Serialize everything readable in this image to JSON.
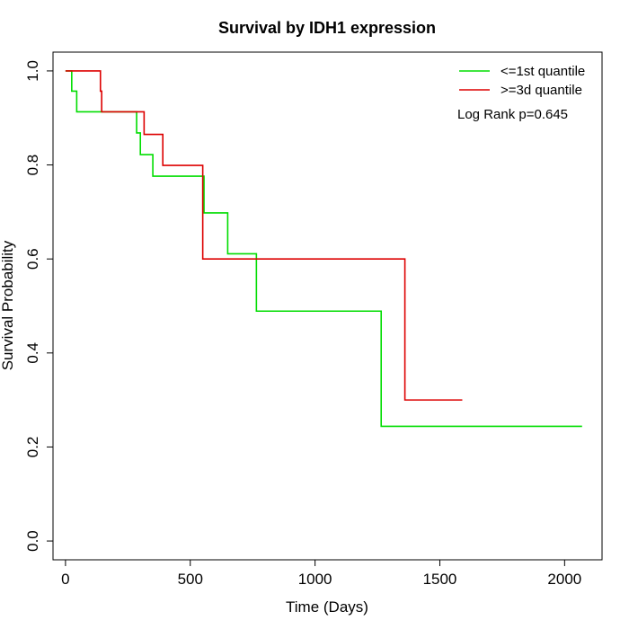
{
  "chart_data": {
    "type": "line",
    "title": "Survival by IDH1 expression",
    "xlabel": "Time (Days)",
    "ylabel": "Survival Probability",
    "xlim": [
      -50,
      2150
    ],
    "ylim": [
      -0.04,
      1.04
    ],
    "xticks": [
      0,
      500,
      1000,
      1500,
      2000
    ],
    "yticks": [
      0.0,
      0.2,
      0.4,
      0.6,
      0.8,
      1.0
    ],
    "xtick_labels": [
      "0",
      "500",
      "1000",
      "1500",
      "2000"
    ],
    "ytick_labels": [
      "0.0",
      "0.2",
      "0.4",
      "0.6",
      "0.8",
      "1.0"
    ],
    "grid": false,
    "legend_position": "top-right",
    "annotation": "Log Rank p=0.645",
    "series": [
      {
        "name": "<=1st quantile",
        "color": "#00dd00",
        "step_x": [
          0,
          25,
          45,
          285,
          300,
          350,
          555,
          650,
          765,
          1265,
          2070
        ],
        "step_y": [
          1.0,
          0.957,
          0.913,
          0.868,
          0.822,
          0.776,
          0.698,
          0.611,
          0.489,
          0.244,
          0.244
        ]
      },
      {
        "name": ">=3d quantile",
        "color": "#dd0000",
        "step_x": [
          0,
          140,
          145,
          315,
          390,
          550,
          1360,
          1590
        ],
        "step_y": [
          1.0,
          0.957,
          0.913,
          0.865,
          0.799,
          0.6,
          0.3,
          0.3
        ]
      }
    ]
  }
}
